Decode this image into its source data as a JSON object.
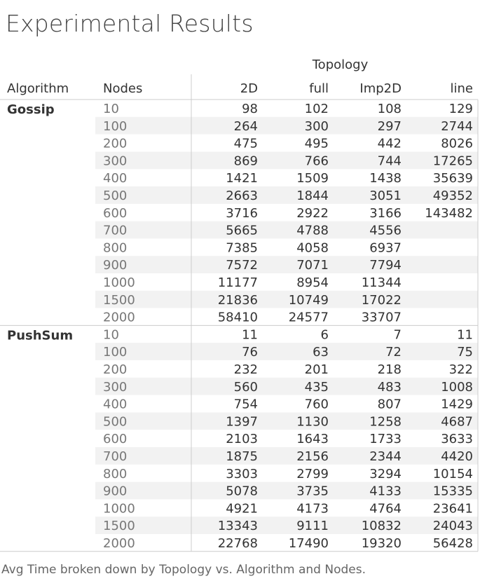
{
  "title": "Experimental Results",
  "caption": "Avg Time broken down by Topology vs. Algorithm and Nodes.",
  "chart_data": {
    "type": "table",
    "column_group_label": "Topology",
    "row_headers": [
      "Algorithm",
      "Nodes"
    ],
    "columns": [
      "2D",
      "full",
      "Imp2D",
      "line"
    ],
    "groups": [
      {
        "algorithm": "Gossip",
        "rows": [
          {
            "nodes": "10",
            "values": [
              "98",
              "102",
              "108",
              "129"
            ]
          },
          {
            "nodes": "100",
            "values": [
              "264",
              "300",
              "297",
              "2744"
            ]
          },
          {
            "nodes": "200",
            "values": [
              "475",
              "495",
              "442",
              "8026"
            ]
          },
          {
            "nodes": "300",
            "values": [
              "869",
              "766",
              "744",
              "17265"
            ]
          },
          {
            "nodes": "400",
            "values": [
              "1421",
              "1509",
              "1438",
              "35639"
            ]
          },
          {
            "nodes": "500",
            "values": [
              "2663",
              "1844",
              "3051",
              "49352"
            ]
          },
          {
            "nodes": "600",
            "values": [
              "3716",
              "2922",
              "3166",
              "143482"
            ]
          },
          {
            "nodes": "700",
            "values": [
              "5665",
              "4788",
              "4556",
              ""
            ]
          },
          {
            "nodes": "800",
            "values": [
              "7385",
              "4058",
              "6937",
              ""
            ]
          },
          {
            "nodes": "900",
            "values": [
              "7572",
              "7071",
              "7794",
              ""
            ]
          },
          {
            "nodes": "1000",
            "values": [
              "11177",
              "8954",
              "11344",
              ""
            ]
          },
          {
            "nodes": "1500",
            "values": [
              "21836",
              "10749",
              "17022",
              ""
            ]
          },
          {
            "nodes": "2000",
            "values": [
              "58410",
              "24577",
              "33707",
              ""
            ]
          }
        ]
      },
      {
        "algorithm": "PushSum",
        "rows": [
          {
            "nodes": "10",
            "values": [
              "11",
              "6",
              "7",
              "11"
            ]
          },
          {
            "nodes": "100",
            "values": [
              "76",
              "63",
              "72",
              "75"
            ]
          },
          {
            "nodes": "200",
            "values": [
              "232",
              "201",
              "218",
              "322"
            ]
          },
          {
            "nodes": "300",
            "values": [
              "560",
              "435",
              "483",
              "1008"
            ]
          },
          {
            "nodes": "400",
            "values": [
              "754",
              "760",
              "807",
              "1429"
            ]
          },
          {
            "nodes": "500",
            "values": [
              "1397",
              "1130",
              "1258",
              "4687"
            ]
          },
          {
            "nodes": "600",
            "values": [
              "2103",
              "1643",
              "1733",
              "3633"
            ]
          },
          {
            "nodes": "700",
            "values": [
              "1875",
              "2156",
              "2344",
              "4420"
            ]
          },
          {
            "nodes": "800",
            "values": [
              "3303",
              "2799",
              "3294",
              "10154"
            ]
          },
          {
            "nodes": "900",
            "values": [
              "5078",
              "3735",
              "4133",
              "15335"
            ]
          },
          {
            "nodes": "1000",
            "values": [
              "4921",
              "4173",
              "4764",
              "23641"
            ]
          },
          {
            "nodes": "1500",
            "values": [
              "13343",
              "9111",
              "10832",
              "24043"
            ]
          },
          {
            "nodes": "2000",
            "values": [
              "22768",
              "17490",
              "19320",
              "56428"
            ]
          }
        ]
      }
    ]
  },
  "colors": {
    "band": "#f2f2f2",
    "rule": "#cccccc",
    "text": "#333333",
    "muted": "#777777"
  }
}
